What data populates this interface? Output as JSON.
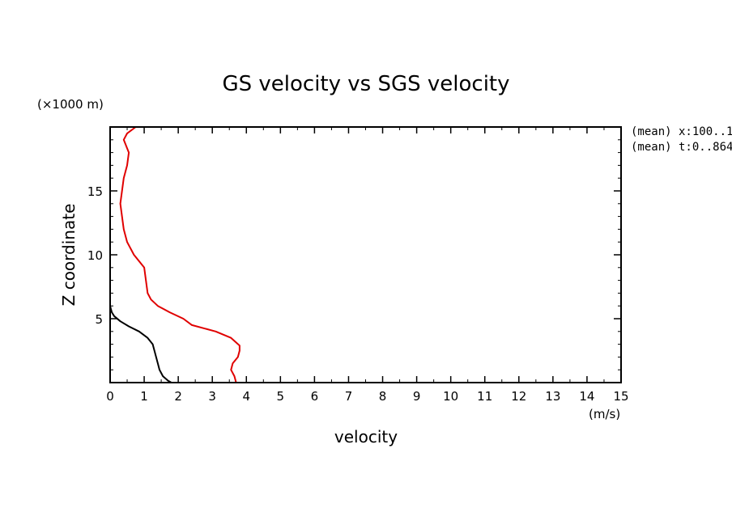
{
  "chart_data": {
    "type": "line",
    "title": "GS velocity vs SGS velocity",
    "xlabel": "velocity",
    "ylabel": "Z coordinate",
    "x_unit": "(m/s)",
    "y_unit": "(×1000 m)",
    "xlim": [
      0,
      15
    ],
    "ylim": [
      0,
      20
    ],
    "x_ticks": [
      0,
      1,
      2,
      3,
      4,
      5,
      6,
      7,
      8,
      9,
      10,
      11,
      12,
      13,
      14,
      15
    ],
    "y_ticks": [
      5,
      10,
      15
    ],
    "annotations": [
      "(mean) x:100..1",
      "(mean) t:0..864"
    ],
    "series": [
      {
        "name": "GS velocity",
        "color": "#000000",
        "points": [
          [
            1.8,
            0
          ],
          [
            1.7,
            0.15
          ],
          [
            1.55,
            0.5
          ],
          [
            1.45,
            1
          ],
          [
            1.4,
            1.5
          ],
          [
            1.35,
            2
          ],
          [
            1.3,
            2.5
          ],
          [
            1.25,
            3
          ],
          [
            1.1,
            3.5
          ],
          [
            0.85,
            4
          ],
          [
            0.55,
            4.4
          ],
          [
            0.3,
            4.8
          ],
          [
            0.12,
            5.2
          ],
          [
            0.05,
            5.5
          ],
          [
            0.02,
            5.8
          ],
          [
            0,
            6
          ]
        ]
      },
      {
        "name": "SGS velocity",
        "color": "#e00000",
        "points": [
          [
            3.7,
            0
          ],
          [
            3.65,
            0.5
          ],
          [
            3.55,
            1
          ],
          [
            3.6,
            1.5
          ],
          [
            3.75,
            2
          ],
          [
            3.8,
            2.5
          ],
          [
            3.8,
            2.9
          ],
          [
            3.55,
            3.5
          ],
          [
            3.1,
            4
          ],
          [
            2.4,
            4.5
          ],
          [
            2.15,
            5
          ],
          [
            1.75,
            5.5
          ],
          [
            1.4,
            6
          ],
          [
            1.2,
            6.5
          ],
          [
            1.1,
            7
          ],
          [
            1.05,
            8
          ],
          [
            1,
            9
          ],
          [
            0.7,
            10
          ],
          [
            0.5,
            11
          ],
          [
            0.4,
            12
          ],
          [
            0.35,
            13
          ],
          [
            0.3,
            14
          ],
          [
            0.35,
            15
          ],
          [
            0.4,
            16
          ],
          [
            0.5,
            17
          ],
          [
            0.55,
            18
          ],
          [
            0.4,
            19
          ],
          [
            0.5,
            19.5
          ],
          [
            0.75,
            20
          ]
        ]
      }
    ]
  }
}
